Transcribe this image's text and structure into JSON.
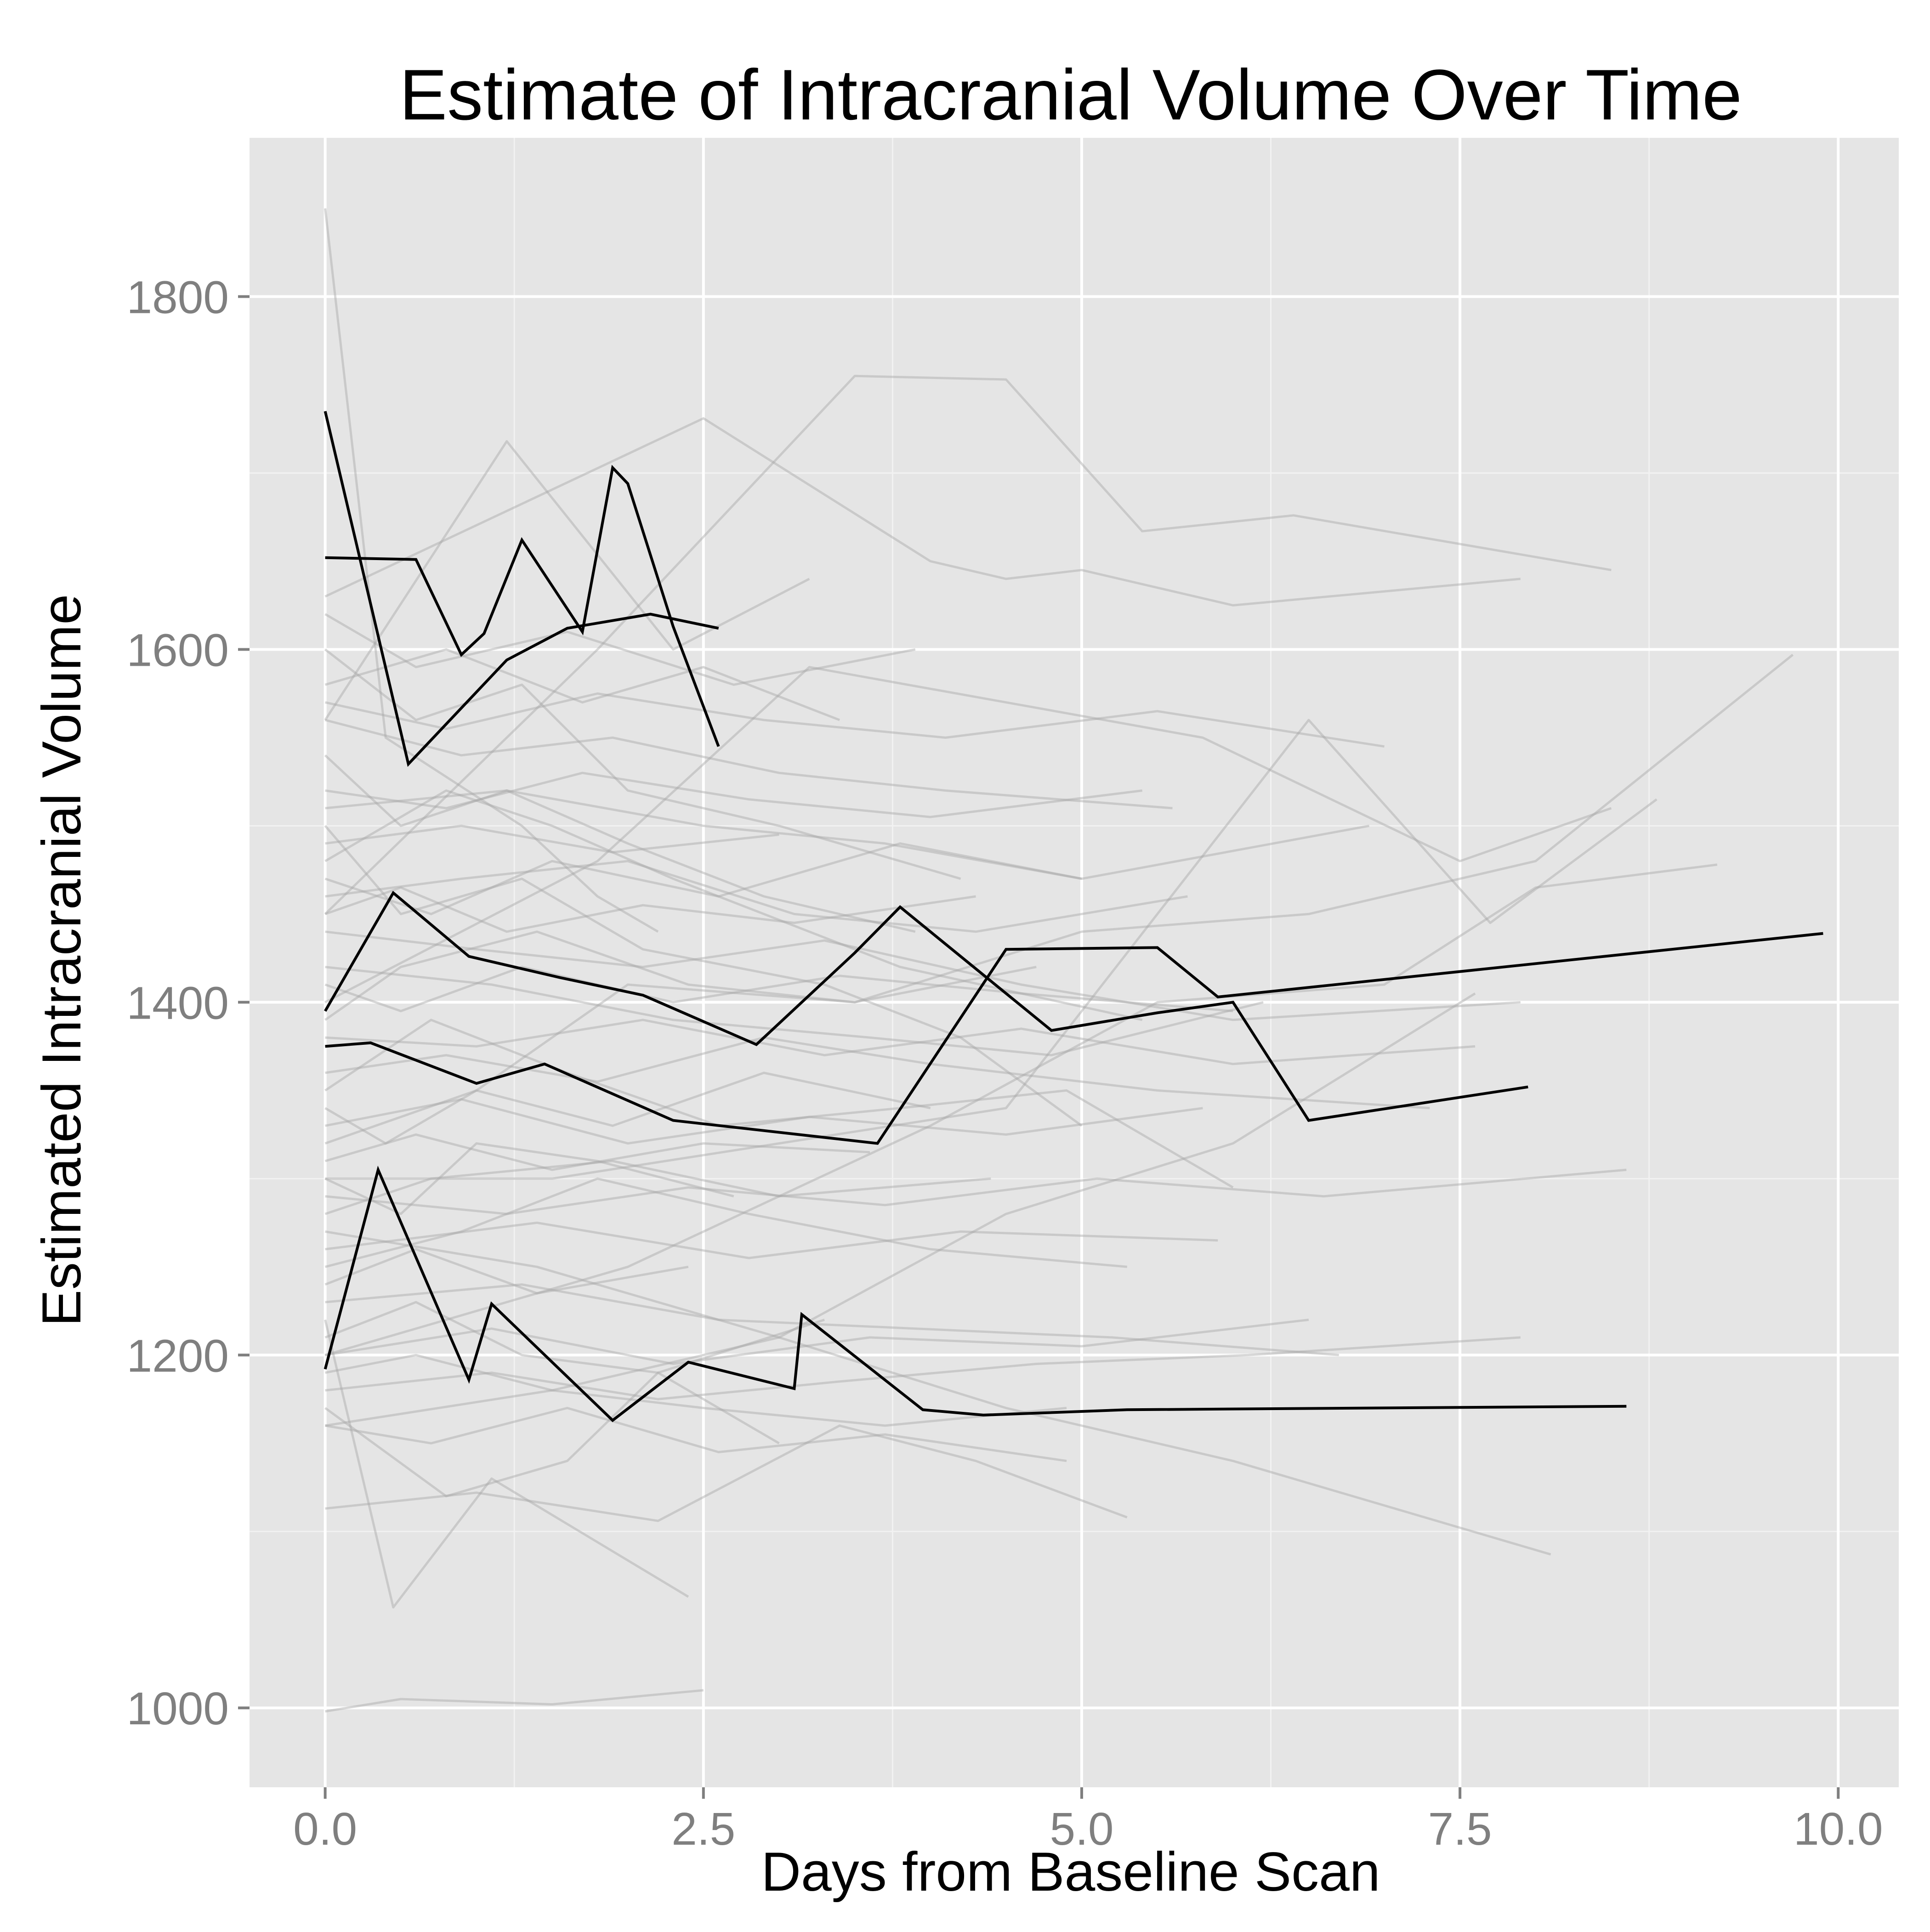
{
  "chart_data": {
    "type": "line",
    "title": "Estimate of Intracranial Volume Over Time",
    "xlabel": "Days from Baseline Scan",
    "ylabel": "Estimated Intracranial Volume",
    "xlim": [
      -0.5,
      10.4
    ],
    "ylim": [
      955,
      1890
    ],
    "x_ticks": [
      0,
      2.5,
      5,
      7.5,
      10
    ],
    "x_tick_labels": [
      "0.0",
      "2.5",
      "5.0",
      "7.5",
      "10.0"
    ],
    "y_ticks": [
      1000,
      1200,
      1400,
      1600,
      1800
    ],
    "y_tick_labels": [
      "1000",
      "1200",
      "1400",
      "1600",
      "1800"
    ],
    "grid": true,
    "legend": "none",
    "background_subjects": [
      {
        "x": [
          0.0,
          0.5,
          1.5,
          2.5
        ],
        "y": [
          998,
          1005,
          1002,
          1010
        ]
      },
      {
        "x": [
          0.0,
          0.4,
          1.3,
          1.8,
          2.2
        ],
        "y": [
          1850,
          1550,
          1500,
          1460,
          1440
        ]
      },
      {
        "x": [
          0.0,
          0.45,
          1.1,
          2.4
        ],
        "y": [
          1220,
          1057,
          1130,
          1063
        ]
      },
      {
        "x": [
          0.0,
          1.8,
          3.5,
          4.5,
          5.4,
          6.4,
          8.5
        ],
        "y": [
          1450,
          1600,
          1755,
          1753,
          1667,
          1676,
          1645
        ]
      },
      {
        "x": [
          0.0,
          1.2,
          2.3,
          3.2
        ],
        "y": [
          1560,
          1718,
          1600,
          1640
        ]
      },
      {
        "x": [
          0.0,
          2.5,
          4.0,
          4.5,
          5.0,
          6.0,
          7.9
        ],
        "y": [
          1630,
          1731,
          1650,
          1640,
          1645,
          1625,
          1640
        ]
      },
      {
        "x": [
          0.0,
          1.8,
          3.2,
          5.8,
          7.5,
          8.5
        ],
        "y": [
          1400,
          1480,
          1590,
          1550,
          1480,
          1510
        ]
      },
      {
        "x": [
          0.0,
          1.5,
          3.0,
          4.5,
          6.5,
          7.7,
          8.8
        ],
        "y": [
          1300,
          1300,
          1320,
          1340,
          1560,
          1445,
          1515
        ]
      },
      {
        "x": [
          0.0,
          2.0,
          4.0,
          5.5,
          7.0,
          8.0,
          9.2
        ],
        "y": [
          1200,
          1250,
          1330,
          1400,
          1410,
          1465,
          1478
        ]
      },
      {
        "x": [
          0.0,
          1.0,
          2.0,
          3.5,
          5.0,
          6.5,
          8.0,
          9.7
        ],
        "y": [
          1320,
          1350,
          1410,
          1400,
          1440,
          1450,
          1480,
          1597
        ]
      },
      {
        "x": [
          0.0,
          1.5,
          3.0,
          4.5,
          6.0,
          7.6
        ],
        "y": [
          1160,
          1180,
          1210,
          1280,
          1320,
          1405
        ]
      },
      {
        "x": [
          0.0,
          0.8,
          1.6,
          2.2,
          3.0
        ],
        "y": [
          1170,
          1120,
          1140,
          1190,
          1150
        ]
      },
      {
        "x": [
          0.0,
          1.0,
          2.2,
          3.4,
          4.3,
          5.3
        ],
        "y": [
          1113,
          1122,
          1106,
          1160,
          1140,
          1108
        ]
      },
      {
        "x": [
          0.0,
          1.4,
          3.0,
          4.5,
          6.0,
          8.1
        ],
        "y": [
          1270,
          1250,
          1210,
          1170,
          1140,
          1087
        ]
      },
      {
        "x": [
          0.0,
          0.8,
          1.5,
          2.3,
          3.8,
          5.4
        ],
        "y": [
          1480,
          1520,
          1500,
          1470,
          1420,
          1390
        ]
      },
      {
        "x": [
          0.0,
          0.6,
          1.3,
          2.0,
          3.0,
          4.2
        ],
        "y": [
          1600,
          1560,
          1580,
          1520,
          1500,
          1470
        ]
      },
      {
        "x": [
          0.0,
          0.5,
          1.3,
          2.1,
          3.3,
          4.2,
          5.0
        ],
        "y": [
          1500,
          1450,
          1470,
          1430,
          1410,
          1380,
          1330
        ]
      },
      {
        "x": [
          0.0,
          0.9,
          1.8,
          2.8,
          4.0,
          5.3
        ],
        "y": [
          1250,
          1270,
          1300,
          1280,
          1260,
          1250
        ]
      },
      {
        "x": [
          0.0,
          0.7,
          1.6,
          2.6,
          3.8,
          4.9,
          6.0
        ],
        "y": [
          1350,
          1390,
          1360,
          1330,
          1340,
          1350,
          1295
        ]
      },
      {
        "x": [
          0.0,
          0.5,
          1.2,
          2.0,
          2.9,
          3.9
        ],
        "y": [
          1540,
          1500,
          1520,
          1490,
          1460,
          1440
        ]
      },
      {
        "x": [
          0.0,
          1.1,
          2.3,
          3.6,
          4.8,
          6.2
        ],
        "y": [
          1420,
          1410,
          1390,
          1380,
          1370,
          1400
        ]
      },
      {
        "x": [
          0.0,
          0.6,
          1.5,
          2.5,
          3.7,
          4.9
        ],
        "y": [
          1190,
          1200,
          1180,
          1170,
          1160,
          1170
        ]
      },
      {
        "x": [
          0.0,
          0.8,
          1.7,
          2.5,
          3.4
        ],
        "y": [
          1580,
          1600,
          1570,
          1590,
          1560
        ]
      },
      {
        "x": [
          0.0,
          0.9,
          2.0,
          3.1,
          4.3,
          5.7
        ],
        "y": [
          1460,
          1470,
          1480,
          1450,
          1440,
          1460
        ]
      },
      {
        "x": [
          0.0,
          0.7,
          1.9,
          3.0,
          4.4
        ],
        "y": [
          1280,
          1300,
          1310,
          1290,
          1300
        ]
      },
      {
        "x": [
          0.0,
          1.3,
          2.6,
          3.9,
          5.2,
          6.7
        ],
        "y": [
          1230,
          1240,
          1220,
          1215,
          1210,
          1200
        ]
      },
      {
        "x": [
          0.0,
          0.4,
          1.0,
          1.9,
          2.9,
          4.0
        ],
        "y": [
          1340,
          1320,
          1350,
          1330,
          1360,
          1340
        ]
      },
      {
        "x": [
          0.0,
          1.2,
          2.5,
          3.7,
          5.0,
          6.9
        ],
        "y": [
          1510,
          1520,
          1500,
          1490,
          1470,
          1500
        ]
      },
      {
        "x": [
          0.0,
          0.5,
          1.4,
          2.4,
          3.5,
          4.7
        ],
        "y": [
          1390,
          1420,
          1440,
          1410,
          1400,
          1420
        ]
      },
      {
        "x": [
          0.0,
          0.6,
          1.3,
          2.2,
          3.3
        ],
        "y": [
          1210,
          1230,
          1200,
          1190,
          1220
        ]
      },
      {
        "x": [
          0.0,
          0.9,
          1.9,
          3.0,
          4.1,
          5.6
        ],
        "y": [
          1560,
          1540,
          1550,
          1530,
          1520,
          1510
        ]
      },
      {
        "x": [
          0.0,
          1.0,
          2.1,
          3.3,
          4.6,
          6.0,
          7.9
        ],
        "y": [
          1440,
          1430,
          1420,
          1435,
          1410,
          1390,
          1400
        ]
      },
      {
        "x": [
          0.0,
          0.5,
          1.0,
          1.8,
          2.7
        ],
        "y": [
          1300,
          1280,
          1320,
          1310,
          1290
        ]
      },
      {
        "x": [
          0.0,
          0.8,
          1.8,
          2.9,
          4.0,
          5.5,
          7.3
        ],
        "y": [
          1360,
          1370,
          1355,
          1380,
          1365,
          1350,
          1340
        ]
      },
      {
        "x": [
          0.0,
          0.7,
          1.5,
          2.6,
          3.8,
          5.0
        ],
        "y": [
          1470,
          1450,
          1480,
          1460,
          1490,
          1470
        ]
      },
      {
        "x": [
          0.0,
          1.1,
          2.2,
          3.4,
          4.7,
          6.1,
          7.9
        ],
        "y": [
          1180,
          1190,
          1175,
          1185,
          1195,
          1200,
          1210
        ]
      },
      {
        "x": [
          0.0,
          0.6,
          1.6,
          2.7,
          3.9
        ],
        "y": [
          1620,
          1590,
          1610,
          1580,
          1600
        ]
      },
      {
        "x": [
          0.0,
          0.9,
          2.0,
          3.2,
          4.5,
          5.8
        ],
        "y": [
          1330,
          1345,
          1320,
          1335,
          1325,
          1340
        ]
      },
      {
        "x": [
          0.0,
          0.5,
          1.3,
          2.3,
          3.4,
          4.6,
          6.0
        ],
        "y": [
          1410,
          1395,
          1420,
          1400,
          1415,
          1405,
          1395
        ]
      },
      {
        "x": [
          0.0,
          1.4,
          2.8,
          4.2,
          5.9
        ],
        "y": [
          1260,
          1275,
          1255,
          1270,
          1265
        ]
      },
      {
        "x": [
          0.0,
          0.8,
          1.7,
          2.8,
          4.0,
          5.4
        ],
        "y": [
          1520,
          1510,
          1530,
          1515,
          1505,
          1520
        ]
      },
      {
        "x": [
          0.0,
          0.6,
          1.4,
          2.4
        ],
        "y": [
          1240,
          1260,
          1235,
          1250
        ]
      },
      {
        "x": [
          0.0,
          1.0,
          2.1,
          3.3,
          4.6,
          6.0,
          7.6
        ],
        "y": [
          1380,
          1375,
          1390,
          1370,
          1385,
          1365,
          1375
        ]
      },
      {
        "x": [
          0.0,
          0.7,
          1.6,
          2.6,
          3.7,
          4.9
        ],
        "y": [
          1160,
          1150,
          1170,
          1145,
          1155,
          1140
        ]
      },
      {
        "x": [
          0.0,
          0.9,
          1.9,
          3.0
        ],
        "y": [
          1490,
          1500,
          1485,
          1495
        ]
      },
      {
        "x": [
          0.0,
          1.2,
          2.4,
          3.7,
          5.1,
          6.6,
          8.6
        ],
        "y": [
          1290,
          1280,
          1295,
          1285,
          1300,
          1290,
          1305
        ]
      },
      {
        "x": [
          0.0,
          0.5,
          1.2,
          2.1,
          3.1,
          4.3
        ],
        "y": [
          1450,
          1465,
          1440,
          1455,
          1445,
          1460
        ]
      },
      {
        "x": [
          0.0,
          0.8,
          1.8,
          2.9,
          4.1,
          5.5,
          7.0
        ],
        "y": [
          1570,
          1555,
          1575,
          1560,
          1550,
          1565,
          1545
        ]
      },
      {
        "x": [
          0.0,
          0.6,
          1.5,
          2.5,
          3.6
        ],
        "y": [
          1310,
          1325,
          1305,
          1320,
          1315
        ]
      },
      {
        "x": [
          0.0,
          1.1,
          2.3,
          3.6,
          5.0,
          6.5
        ],
        "y": [
          1200,
          1215,
          1195,
          1210,
          1205,
          1220
        ]
      }
    ],
    "series": [
      {
        "x": [
          0.0,
          0.55,
          1.2,
          1.6,
          2.15,
          2.6
        ],
        "y": [
          1735,
          1535,
          1594,
          1612,
          1620,
          1612
        ]
      },
      {
        "x": [
          0.0,
          0.6,
          0.9,
          1.05,
          1.3,
          1.7,
          1.9,
          2.0,
          2.3,
          2.6
        ],
        "y": [
          1652,
          1651,
          1597,
          1609,
          1662,
          1610,
          1703,
          1694,
          1613,
          1545
        ]
      },
      {
        "x": [
          0.0,
          0.45,
          0.95,
          1.55,
          2.1,
          2.85,
          3.5,
          3.8,
          4.8,
          5.5,
          6.0,
          6.5,
          7.95
        ],
        "y": [
          1395,
          1462,
          1426,
          1414,
          1404,
          1376,
          1428,
          1454,
          1384,
          1394,
          1400,
          1333,
          1352
        ]
      },
      {
        "x": [
          0.0,
          0.3,
          1.0,
          1.45,
          2.3,
          3.65,
          4.5,
          5.5,
          5.9,
          9.9
        ],
        "y": [
          1375,
          1377,
          1354,
          1365,
          1333,
          1320,
          1430,
          1431,
          1403,
          1439
        ]
      },
      {
        "x": [
          0.0,
          0.35,
          0.95,
          1.1,
          1.9,
          2.4,
          3.1,
          3.15,
          3.95,
          4.35,
          5.3,
          8.6
        ],
        "y": [
          1192,
          1305,
          1186,
          1229,
          1163,
          1196,
          1181,
          1223,
          1169,
          1166,
          1169,
          1171
        ]
      }
    ],
    "colors": {
      "panel_background": "#e5e5e5",
      "grid_major": "#ffffff",
      "grid_minor": "#f2f2f2",
      "background_lines": "#a6a6a6",
      "highlight_lines": "#000000",
      "tick_labels": "#7f7f7f",
      "tick_marks": "#7f7f7f",
      "title": "#000000"
    }
  }
}
